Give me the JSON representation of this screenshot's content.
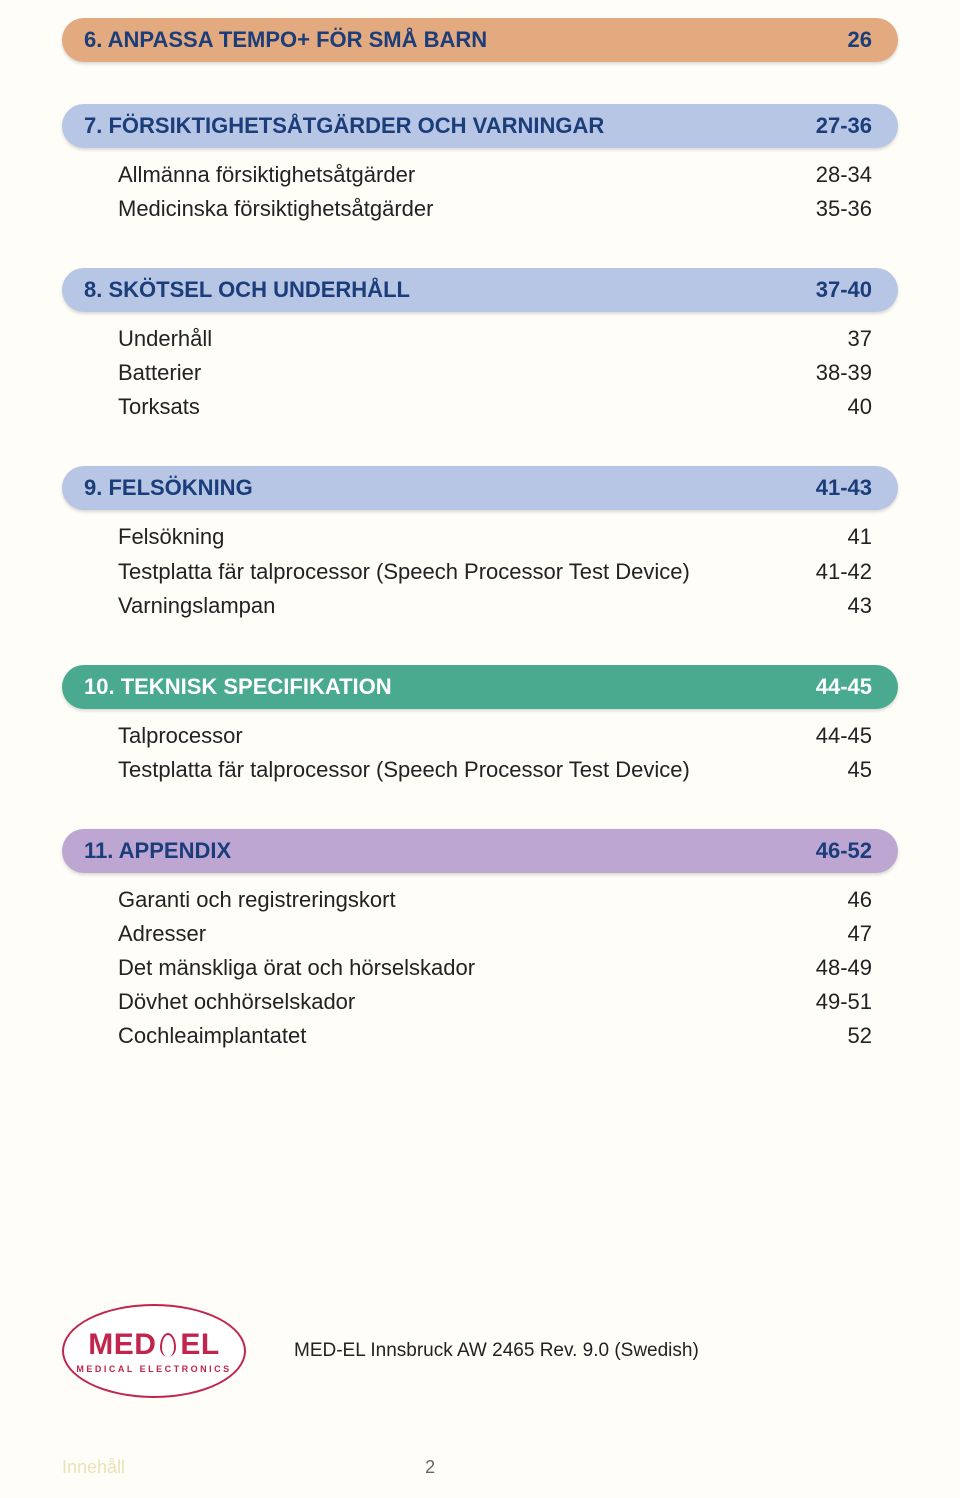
{
  "sections": [
    {
      "style": "bar-orange",
      "title": "6.  ANPASSA TEMPO+ FÖR SMÅ BARN",
      "page": "26",
      "items": []
    },
    {
      "style": "bar-blue",
      "title": "7.  FÖRSIKTIGHETSÅTGÄRDER OCH VARNINGAR",
      "page": "27-36",
      "items": [
        {
          "label": "Allmänna försiktighetsåtgärder",
          "page": "28-34"
        },
        {
          "label": "Medicinska försiktighetsåtgärder",
          "page": "35-36"
        }
      ]
    },
    {
      "style": "bar-blue",
      "title": "8.  SKÖTSEL OCH UNDERHÅLL",
      "page": "37-40",
      "items": [
        {
          "label": "Underhåll",
          "page": "37"
        },
        {
          "label": "Batterier",
          "page": "38-39"
        },
        {
          "label": "Torksats",
          "page": "40"
        }
      ]
    },
    {
      "style": "bar-blue",
      "title": "9.  FELSÖKNING",
      "page": "41-43",
      "items": [
        {
          "label": "Felsökning",
          "page": "41"
        },
        {
          "label": "Testplatta fär talprocessor (Speech Processor Test Device)",
          "page": "41-42"
        },
        {
          "label": "Varningslampan",
          "page": "43"
        }
      ]
    },
    {
      "style": "bar-green",
      "title": "10. TEKNISK SPECIFIKATION",
      "page": "44-45",
      "items": [
        {
          "label": "Talprocessor",
          "page": "44-45"
        },
        {
          "label": "Testplatta fär talprocessor (Speech Processor Test Device)",
          "page": "45"
        }
      ]
    },
    {
      "style": "bar-purple",
      "title": "11. APPENDIX",
      "page": "46-52",
      "items": [
        {
          "label": "Garanti och registreringskort",
          "page": "46"
        },
        {
          "label": "Adresser",
          "page": "47"
        },
        {
          "label": "Det mänskliga örat och hörselskador",
          "page": "48-49"
        },
        {
          "label": "Dövhet ochhörselskador",
          "page": "49-51"
        },
        {
          "label": "Cochleaimplantatet",
          "page": "52"
        }
      ]
    }
  ],
  "logo": {
    "main_left": "MED",
    "main_right": "EL",
    "sub": "MEDICAL ELECTRONICS"
  },
  "doc_ref": "MED-EL Innsbruck AW 2465 Rev. 9.0 (Swedish)",
  "footer": {
    "label": "Innehåll",
    "page": "2"
  }
}
